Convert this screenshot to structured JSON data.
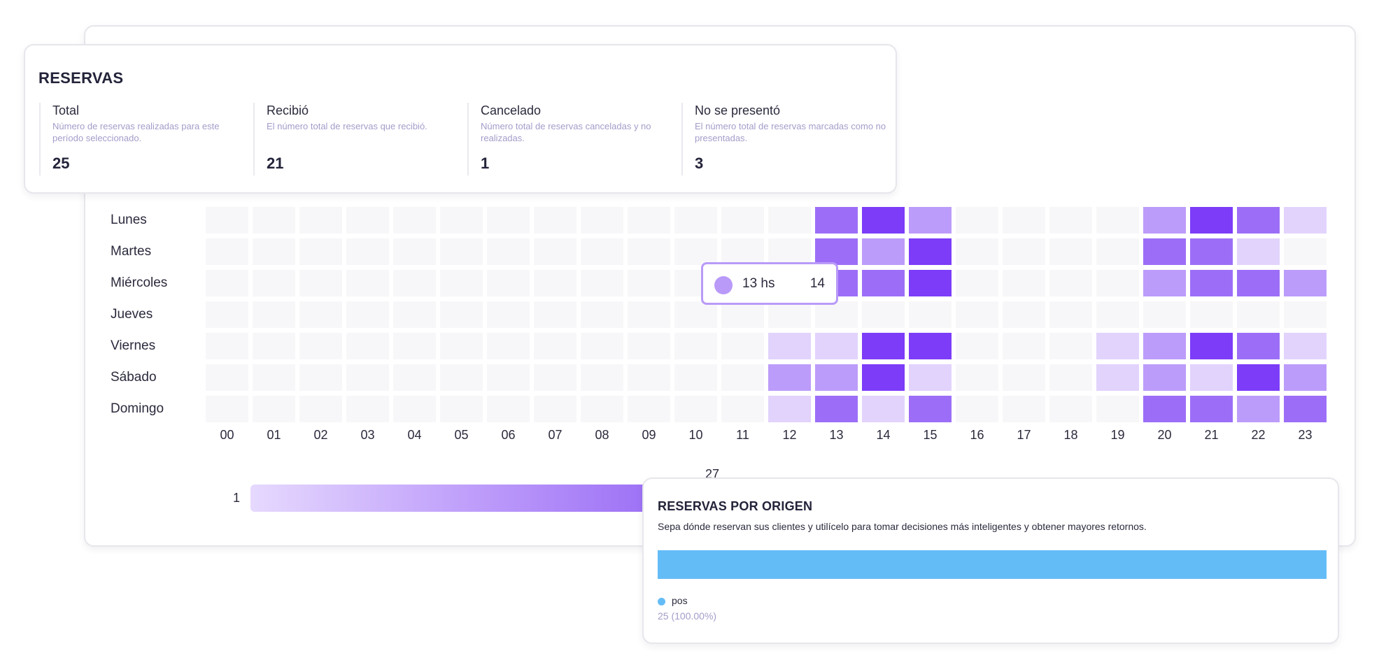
{
  "summary": {
    "title": "RESERVAS",
    "metrics": [
      {
        "label": "Total",
        "desc": "Número de reservas realizadas para este período seleccionado.",
        "value": "25"
      },
      {
        "label": "Recibió",
        "desc": "El número total de reservas que recibió.",
        "value": "21"
      },
      {
        "label": "Cancelado",
        "desc": "Número total de reservas canceladas y no realizadas.",
        "value": "1"
      },
      {
        "label": "No se presentó",
        "desc": "El número total de reservas marcadas como no presentadas.",
        "value": "3"
      }
    ]
  },
  "chart_data": {
    "type": "heatmap",
    "rows": [
      "Lunes",
      "Martes",
      "Miércoles",
      "Jueves",
      "Viernes",
      "Sábado",
      "Domingo"
    ],
    "columns": [
      "00",
      "01",
      "02",
      "03",
      "04",
      "05",
      "06",
      "07",
      "08",
      "09",
      "10",
      "11",
      "12",
      "13",
      "14",
      "15",
      "16",
      "17",
      "18",
      "19",
      "20",
      "21",
      "22",
      "23"
    ],
    "values": [
      [
        0,
        0,
        0,
        0,
        0,
        0,
        0,
        0,
        0,
        0,
        0,
        0,
        0,
        14,
        24,
        10,
        0,
        0,
        0,
        0,
        10,
        24,
        14,
        4
      ],
      [
        0,
        0,
        0,
        0,
        0,
        0,
        0,
        0,
        0,
        0,
        0,
        0,
        0,
        14,
        10,
        24,
        0,
        0,
        0,
        0,
        14,
        14,
        4,
        0
      ],
      [
        0,
        0,
        0,
        0,
        0,
        0,
        0,
        0,
        0,
        0,
        0,
        0,
        0,
        14,
        14,
        24,
        0,
        0,
        0,
        0,
        10,
        14,
        14,
        10
      ],
      [
        0,
        0,
        0,
        0,
        0,
        0,
        0,
        0,
        0,
        0,
        0,
        0,
        0,
        0,
        0,
        0,
        0,
        0,
        0,
        0,
        0,
        0,
        0,
        0
      ],
      [
        0,
        0,
        0,
        0,
        0,
        0,
        0,
        0,
        0,
        0,
        0,
        0,
        4,
        4,
        24,
        24,
        0,
        0,
        0,
        4,
        10,
        24,
        14,
        4
      ],
      [
        0,
        0,
        0,
        0,
        0,
        0,
        0,
        0,
        0,
        0,
        0,
        0,
        10,
        10,
        24,
        4,
        0,
        0,
        0,
        4,
        10,
        4,
        24,
        10
      ],
      [
        0,
        0,
        0,
        0,
        0,
        0,
        0,
        0,
        0,
        0,
        0,
        0,
        4,
        14,
        4,
        14,
        0,
        0,
        0,
        0,
        14,
        14,
        10,
        14
      ]
    ],
    "legend": {
      "min": "1",
      "max": "27"
    },
    "tooltip": {
      "label": "13 hs",
      "value": "14"
    }
  },
  "colors": {
    "empty": "#f7f7f9",
    "scale": [
      "#e2d3fd",
      "#bc9cfa",
      "#9c6ef7",
      "#7c3cf8"
    ],
    "origin_bar": "#64bcf7"
  },
  "origin": {
    "title": "RESERVAS POR ORIGEN",
    "desc": "Sepa dónde reservan sus clientes y utilícelo para tomar decisiones más inteligentes y obtener mayores retornos.",
    "legend_name": "pos",
    "legend_value": "25 (100.00%)"
  }
}
